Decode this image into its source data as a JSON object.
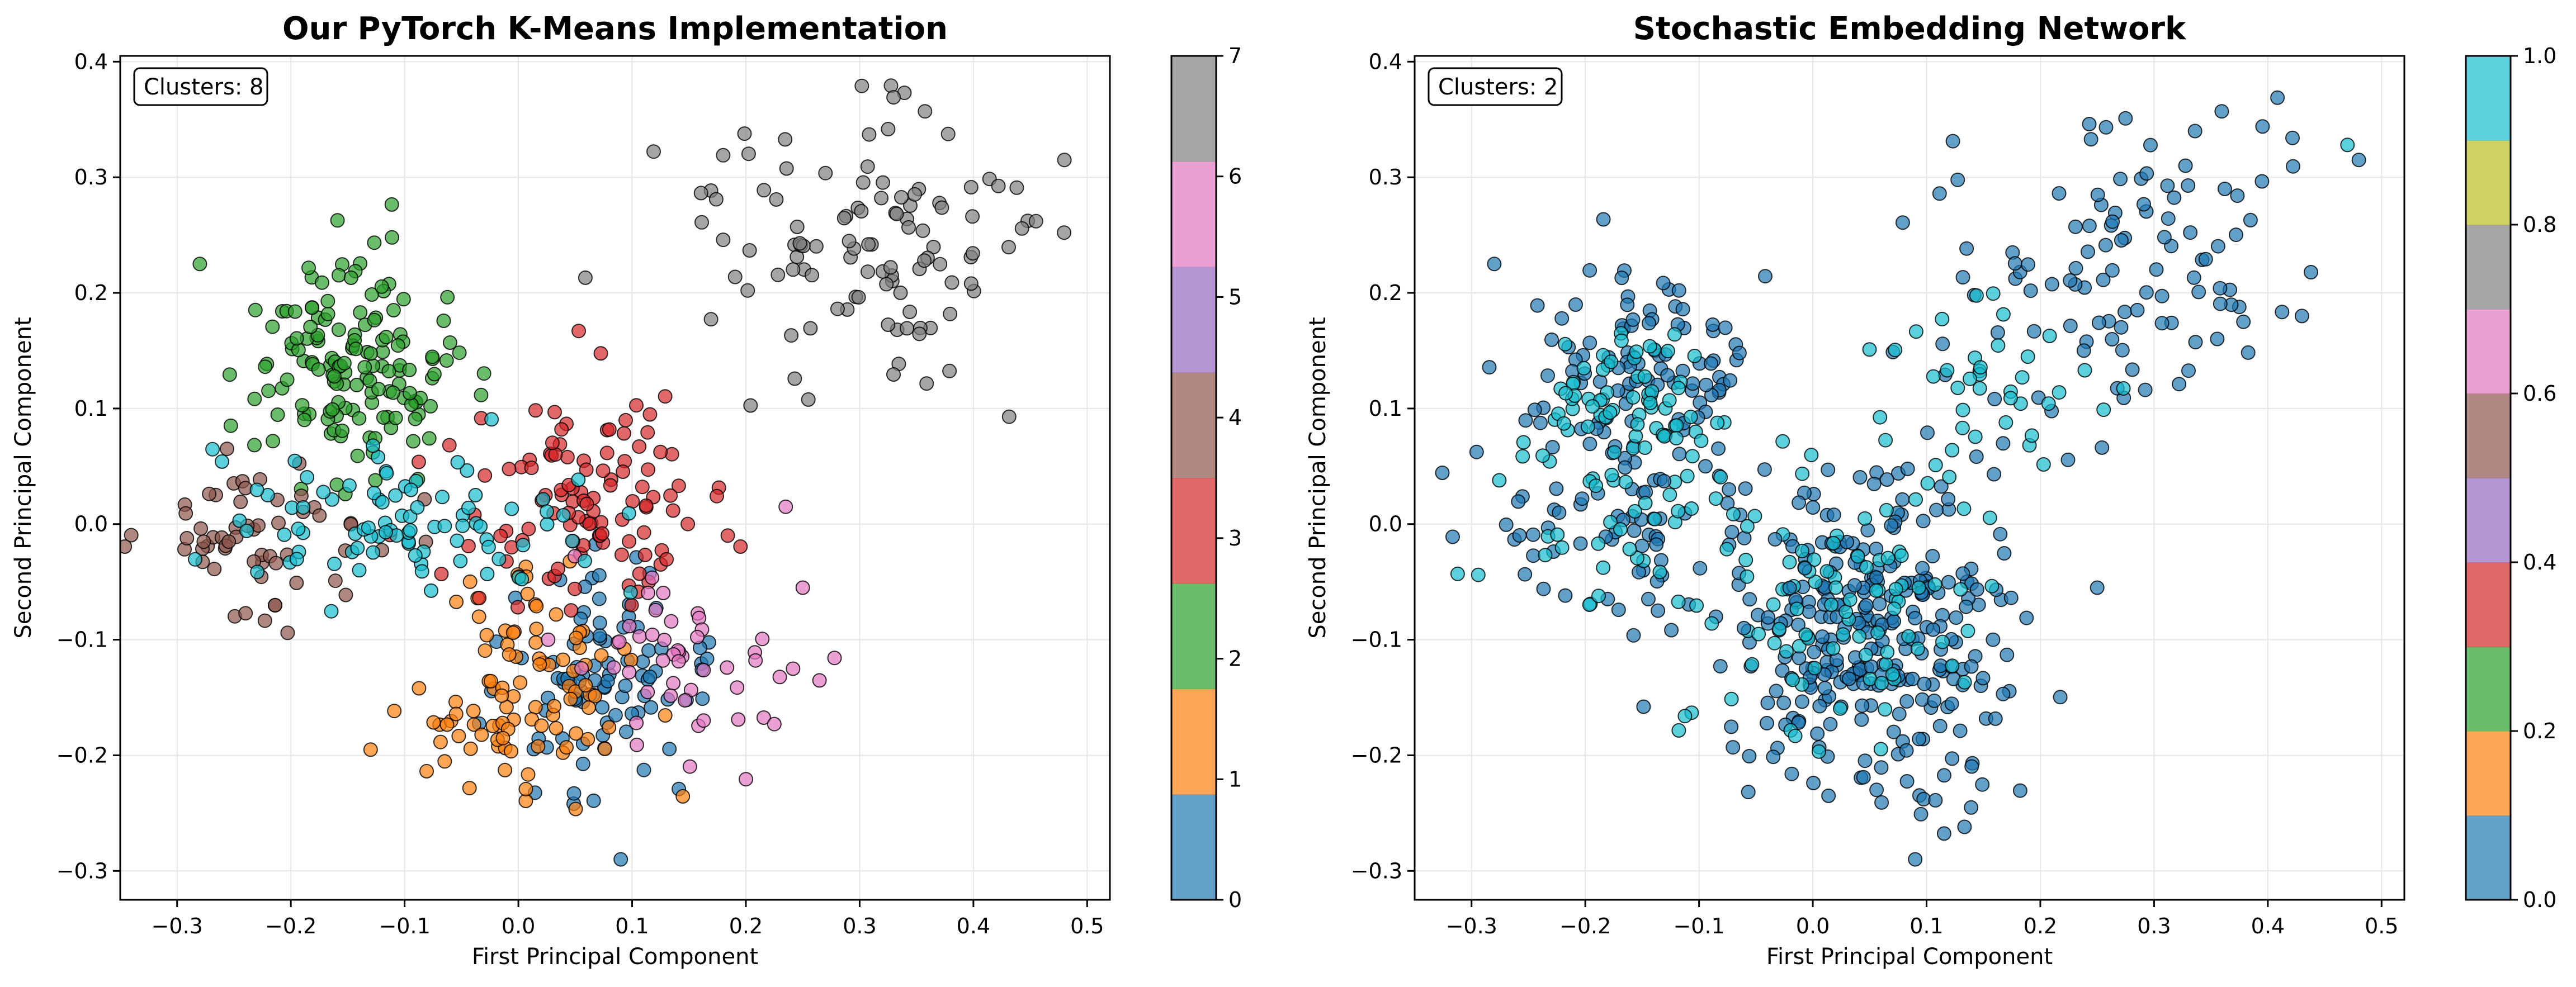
{
  "palette": [
    "#1f77b4",
    "#ff7f0e",
    "#2ca02c",
    "#d62728",
    "#9467bd",
    "#8c564b",
    "#e377c2",
    "#7f7f7f",
    "#bcbd22",
    "#17becf"
  ],
  "chart_data": [
    {
      "type": "scatter",
      "title": "Our PyTorch K-Means Implementation",
      "xlabel": "First Principal Component",
      "ylabel": "Second Principal Component",
      "xlim": [
        -0.35,
        0.52
      ],
      "ylim": [
        -0.325,
        0.405
      ],
      "xticks": [
        -0.3,
        -0.2,
        -0.1,
        0.0,
        0.1,
        0.2,
        0.3,
        0.4,
        0.5
      ],
      "xtick_labels": [
        "−0.3",
        "−0.2",
        "−0.1",
        "0.0",
        "0.1",
        "0.2",
        "0.3",
        "0.4",
        "0.5"
      ],
      "yticks": [
        -0.3,
        -0.2,
        -0.1,
        0.0,
        0.1,
        0.2,
        0.3,
        0.4
      ],
      "ytick_labels": [
        "−0.3",
        "−0.2",
        "−0.1",
        "0.0",
        "0.1",
        "0.2",
        "0.3",
        "0.4"
      ],
      "grid": true,
      "annotation": "Clusters: 8",
      "annotation_position": "top-left",
      "colorbar": {
        "min": 0,
        "max": 7,
        "levels": 8,
        "ticks": [
          0,
          1,
          2,
          3,
          4,
          5,
          6,
          7
        ],
        "tick_labels": [
          "0",
          "1",
          "2",
          "3",
          "4",
          "5",
          "6",
          "7"
        ],
        "band_colors": [
          "#1f77b4",
          "#ff7f0e",
          "#2ca02c",
          "#d62728",
          "#8c564b",
          "#9467bd",
          "#e377c2",
          "#7f7f7f",
          "#bcbd22",
          "#17becf"
        ]
      },
      "point_alpha": 0.7,
      "clusters": [
        {
          "label": 0,
          "center": [
            0.07,
            -0.15
          ],
          "spread": [
            0.045,
            0.055
          ],
          "count": 90
        },
        {
          "label": 1,
          "center": [
            0.0,
            -0.14
          ],
          "spread": [
            0.05,
            0.05
          ],
          "count": 100
        },
        {
          "label": 2,
          "center": [
            -0.15,
            0.14
          ],
          "spread": [
            0.045,
            0.045
          ],
          "count": 150
        },
        {
          "label": 3,
          "center": [
            0.06,
            0.02
          ],
          "spread": [
            0.06,
            0.05
          ],
          "count": 110
        },
        {
          "label": 5,
          "center": [
            -0.22,
            -0.02
          ],
          "spread": [
            0.06,
            0.04
          ],
          "count": 60
        },
        {
          "label": 6,
          "center": [
            0.15,
            -0.13
          ],
          "spread": [
            0.045,
            0.05
          ],
          "count": 50
        },
        {
          "label": 7,
          "center": [
            0.3,
            0.24
          ],
          "spread": [
            0.08,
            0.06
          ],
          "count": 110
        },
        {
          "label": 9,
          "center": [
            -0.09,
            0.0
          ],
          "spread": [
            0.08,
            0.035
          ],
          "count": 90
        }
      ],
      "outliers": [
        [
          0.09,
          -0.29,
          0
        ],
        [
          -0.28,
          0.225,
          2
        ],
        [
          0.235,
          0.015,
          6
        ],
        [
          0.25,
          -0.055,
          6
        ],
        [
          0.48,
          0.315,
          7
        ],
        [
          0.455,
          0.262,
          7
        ]
      ]
    },
    {
      "type": "scatter",
      "title": "Stochastic Embedding Network",
      "xlabel": "First Principal Component",
      "ylabel": "Second Principal Component",
      "xlim": [
        -0.35,
        0.52
      ],
      "ylim": [
        -0.325,
        0.405
      ],
      "xticks": [
        -0.3,
        -0.2,
        -0.1,
        0.0,
        0.1,
        0.2,
        0.3,
        0.4,
        0.5
      ],
      "xtick_labels": [
        "−0.3",
        "−0.2",
        "−0.1",
        "0.0",
        "0.1",
        "0.2",
        "0.3",
        "0.4",
        "0.5"
      ],
      "yticks": [
        -0.3,
        -0.2,
        -0.1,
        0.0,
        0.1,
        0.2,
        0.3,
        0.4
      ],
      "ytick_labels": [
        "−0.3",
        "−0.2",
        "−0.1",
        "0.0",
        "0.1",
        "0.2",
        "0.3",
        "0.4"
      ],
      "grid": true,
      "annotation": "Clusters: 2",
      "annotation_position": "top-left",
      "colorbar": {
        "min": 0.0,
        "max": 1.0,
        "levels": 10,
        "ticks": [
          0.0,
          0.2,
          0.4,
          0.6,
          0.8,
          1.0
        ],
        "tick_labels": [
          "0.0",
          "0.2",
          "0.4",
          "0.6",
          "0.8",
          "1.0"
        ],
        "band_colors": [
          "#1f77b4",
          "#ff7f0e",
          "#2ca02c",
          "#d62728",
          "#9467bd",
          "#8c564b",
          "#e377c2",
          "#7f7f7f",
          "#bcbd22",
          "#17becf"
        ]
      },
      "point_alpha": 0.7,
      "clusters": [
        {
          "label": 0,
          "center": [
            0.05,
            -0.1
          ],
          "spread": [
            0.07,
            0.07
          ],
          "count": 290
        },
        {
          "label": 9,
          "center": [
            0.03,
            -0.08
          ],
          "spread": [
            0.06,
            0.06
          ],
          "count": 90
        },
        {
          "label": 0,
          "center": [
            -0.15,
            0.12
          ],
          "spread": [
            0.05,
            0.05
          ],
          "count": 110
        },
        {
          "label": 9,
          "center": [
            -0.16,
            0.1
          ],
          "spread": [
            0.045,
            0.045
          ],
          "count": 70
        },
        {
          "label": 0,
          "center": [
            -0.18,
            -0.01
          ],
          "spread": [
            0.07,
            0.04
          ],
          "count": 60
        },
        {
          "label": 9,
          "center": [
            -0.15,
            0.0
          ],
          "spread": [
            0.07,
            0.04
          ],
          "count": 40
        },
        {
          "label": 0,
          "center": [
            0.27,
            0.22
          ],
          "spread": [
            0.08,
            0.07
          ],
          "count": 110
        },
        {
          "label": 9,
          "center": [
            0.15,
            0.12
          ],
          "spread": [
            0.05,
            0.04
          ],
          "count": 40
        }
      ],
      "outliers": [
        [
          0.09,
          -0.29,
          0
        ],
        [
          -0.28,
          0.225,
          0
        ],
        [
          0.25,
          -0.055,
          0
        ],
        [
          0.48,
          0.315,
          0
        ],
        [
          0.47,
          0.328,
          9
        ]
      ]
    }
  ]
}
